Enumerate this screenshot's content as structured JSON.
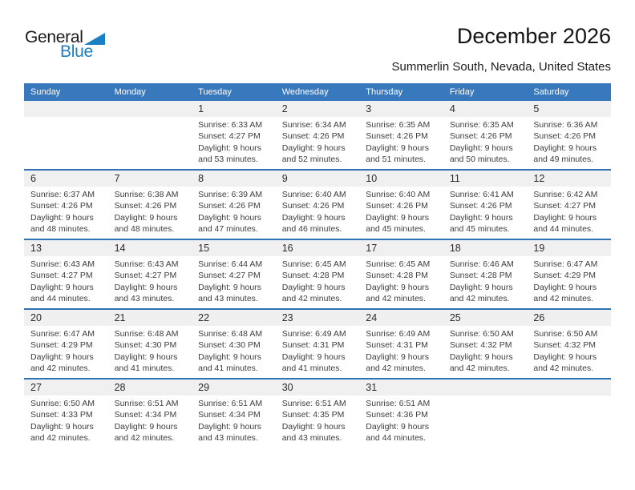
{
  "logo": {
    "general": "General",
    "blue": "Blue"
  },
  "header": {
    "title": "December 2026",
    "subtitle": "Summerlin South, Nevada, United States"
  },
  "weekdays": [
    "Sunday",
    "Monday",
    "Tuesday",
    "Wednesday",
    "Thursday",
    "Friday",
    "Saturday"
  ],
  "weeks": [
    [
      {
        "day": "",
        "sunrise": "",
        "sunset": "",
        "daylight1": "",
        "daylight2": ""
      },
      {
        "day": "",
        "sunrise": "",
        "sunset": "",
        "daylight1": "",
        "daylight2": ""
      },
      {
        "day": "1",
        "sunrise": "Sunrise: 6:33 AM",
        "sunset": "Sunset: 4:27 PM",
        "daylight1": "Daylight: 9 hours",
        "daylight2": "and 53 minutes."
      },
      {
        "day": "2",
        "sunrise": "Sunrise: 6:34 AM",
        "sunset": "Sunset: 4:26 PM",
        "daylight1": "Daylight: 9 hours",
        "daylight2": "and 52 minutes."
      },
      {
        "day": "3",
        "sunrise": "Sunrise: 6:35 AM",
        "sunset": "Sunset: 4:26 PM",
        "daylight1": "Daylight: 9 hours",
        "daylight2": "and 51 minutes."
      },
      {
        "day": "4",
        "sunrise": "Sunrise: 6:35 AM",
        "sunset": "Sunset: 4:26 PM",
        "daylight1": "Daylight: 9 hours",
        "daylight2": "and 50 minutes."
      },
      {
        "day": "5",
        "sunrise": "Sunrise: 6:36 AM",
        "sunset": "Sunset: 4:26 PM",
        "daylight1": "Daylight: 9 hours",
        "daylight2": "and 49 minutes."
      }
    ],
    [
      {
        "day": "6",
        "sunrise": "Sunrise: 6:37 AM",
        "sunset": "Sunset: 4:26 PM",
        "daylight1": "Daylight: 9 hours",
        "daylight2": "and 48 minutes."
      },
      {
        "day": "7",
        "sunrise": "Sunrise: 6:38 AM",
        "sunset": "Sunset: 4:26 PM",
        "daylight1": "Daylight: 9 hours",
        "daylight2": "and 48 minutes."
      },
      {
        "day": "8",
        "sunrise": "Sunrise: 6:39 AM",
        "sunset": "Sunset: 4:26 PM",
        "daylight1": "Daylight: 9 hours",
        "daylight2": "and 47 minutes."
      },
      {
        "day": "9",
        "sunrise": "Sunrise: 6:40 AM",
        "sunset": "Sunset: 4:26 PM",
        "daylight1": "Daylight: 9 hours",
        "daylight2": "and 46 minutes."
      },
      {
        "day": "10",
        "sunrise": "Sunrise: 6:40 AM",
        "sunset": "Sunset: 4:26 PM",
        "daylight1": "Daylight: 9 hours",
        "daylight2": "and 45 minutes."
      },
      {
        "day": "11",
        "sunrise": "Sunrise: 6:41 AM",
        "sunset": "Sunset: 4:26 PM",
        "daylight1": "Daylight: 9 hours",
        "daylight2": "and 45 minutes."
      },
      {
        "day": "12",
        "sunrise": "Sunrise: 6:42 AM",
        "sunset": "Sunset: 4:27 PM",
        "daylight1": "Daylight: 9 hours",
        "daylight2": "and 44 minutes."
      }
    ],
    [
      {
        "day": "13",
        "sunrise": "Sunrise: 6:43 AM",
        "sunset": "Sunset: 4:27 PM",
        "daylight1": "Daylight: 9 hours",
        "daylight2": "and 44 minutes."
      },
      {
        "day": "14",
        "sunrise": "Sunrise: 6:43 AM",
        "sunset": "Sunset: 4:27 PM",
        "daylight1": "Daylight: 9 hours",
        "daylight2": "and 43 minutes."
      },
      {
        "day": "15",
        "sunrise": "Sunrise: 6:44 AM",
        "sunset": "Sunset: 4:27 PM",
        "daylight1": "Daylight: 9 hours",
        "daylight2": "and 43 minutes."
      },
      {
        "day": "16",
        "sunrise": "Sunrise: 6:45 AM",
        "sunset": "Sunset: 4:28 PM",
        "daylight1": "Daylight: 9 hours",
        "daylight2": "and 42 minutes."
      },
      {
        "day": "17",
        "sunrise": "Sunrise: 6:45 AM",
        "sunset": "Sunset: 4:28 PM",
        "daylight1": "Daylight: 9 hours",
        "daylight2": "and 42 minutes."
      },
      {
        "day": "18",
        "sunrise": "Sunrise: 6:46 AM",
        "sunset": "Sunset: 4:28 PM",
        "daylight1": "Daylight: 9 hours",
        "daylight2": "and 42 minutes."
      },
      {
        "day": "19",
        "sunrise": "Sunrise: 6:47 AM",
        "sunset": "Sunset: 4:29 PM",
        "daylight1": "Daylight: 9 hours",
        "daylight2": "and 42 minutes."
      }
    ],
    [
      {
        "day": "20",
        "sunrise": "Sunrise: 6:47 AM",
        "sunset": "Sunset: 4:29 PM",
        "daylight1": "Daylight: 9 hours",
        "daylight2": "and 42 minutes."
      },
      {
        "day": "21",
        "sunrise": "Sunrise: 6:48 AM",
        "sunset": "Sunset: 4:30 PM",
        "daylight1": "Daylight: 9 hours",
        "daylight2": "and 41 minutes."
      },
      {
        "day": "22",
        "sunrise": "Sunrise: 6:48 AM",
        "sunset": "Sunset: 4:30 PM",
        "daylight1": "Daylight: 9 hours",
        "daylight2": "and 41 minutes."
      },
      {
        "day": "23",
        "sunrise": "Sunrise: 6:49 AM",
        "sunset": "Sunset: 4:31 PM",
        "daylight1": "Daylight: 9 hours",
        "daylight2": "and 41 minutes."
      },
      {
        "day": "24",
        "sunrise": "Sunrise: 6:49 AM",
        "sunset": "Sunset: 4:31 PM",
        "daylight1": "Daylight: 9 hours",
        "daylight2": "and 42 minutes."
      },
      {
        "day": "25",
        "sunrise": "Sunrise: 6:50 AM",
        "sunset": "Sunset: 4:32 PM",
        "daylight1": "Daylight: 9 hours",
        "daylight2": "and 42 minutes."
      },
      {
        "day": "26",
        "sunrise": "Sunrise: 6:50 AM",
        "sunset": "Sunset: 4:32 PM",
        "daylight1": "Daylight: 9 hours",
        "daylight2": "and 42 minutes."
      }
    ],
    [
      {
        "day": "27",
        "sunrise": "Sunrise: 6:50 AM",
        "sunset": "Sunset: 4:33 PM",
        "daylight1": "Daylight: 9 hours",
        "daylight2": "and 42 minutes."
      },
      {
        "day": "28",
        "sunrise": "Sunrise: 6:51 AM",
        "sunset": "Sunset: 4:34 PM",
        "daylight1": "Daylight: 9 hours",
        "daylight2": "and 42 minutes."
      },
      {
        "day": "29",
        "sunrise": "Sunrise: 6:51 AM",
        "sunset": "Sunset: 4:34 PM",
        "daylight1": "Daylight: 9 hours",
        "daylight2": "and 43 minutes."
      },
      {
        "day": "30",
        "sunrise": "Sunrise: 6:51 AM",
        "sunset": "Sunset: 4:35 PM",
        "daylight1": "Daylight: 9 hours",
        "daylight2": "and 43 minutes."
      },
      {
        "day": "31",
        "sunrise": "Sunrise: 6:51 AM",
        "sunset": "Sunset: 4:36 PM",
        "daylight1": "Daylight: 9 hours",
        "daylight2": "and 44 minutes."
      },
      {
        "day": "",
        "sunrise": "",
        "sunset": "",
        "daylight1": "",
        "daylight2": ""
      },
      {
        "day": "",
        "sunrise": "",
        "sunset": "",
        "daylight1": "",
        "daylight2": ""
      }
    ]
  ],
  "colors": {
    "header_bg": "#3878BC",
    "header_text": "#FFFFFF",
    "week_divider": "#2E74B5",
    "day_band_bg": "#F0F0F0",
    "logo_blue": "#1B7FC3"
  }
}
